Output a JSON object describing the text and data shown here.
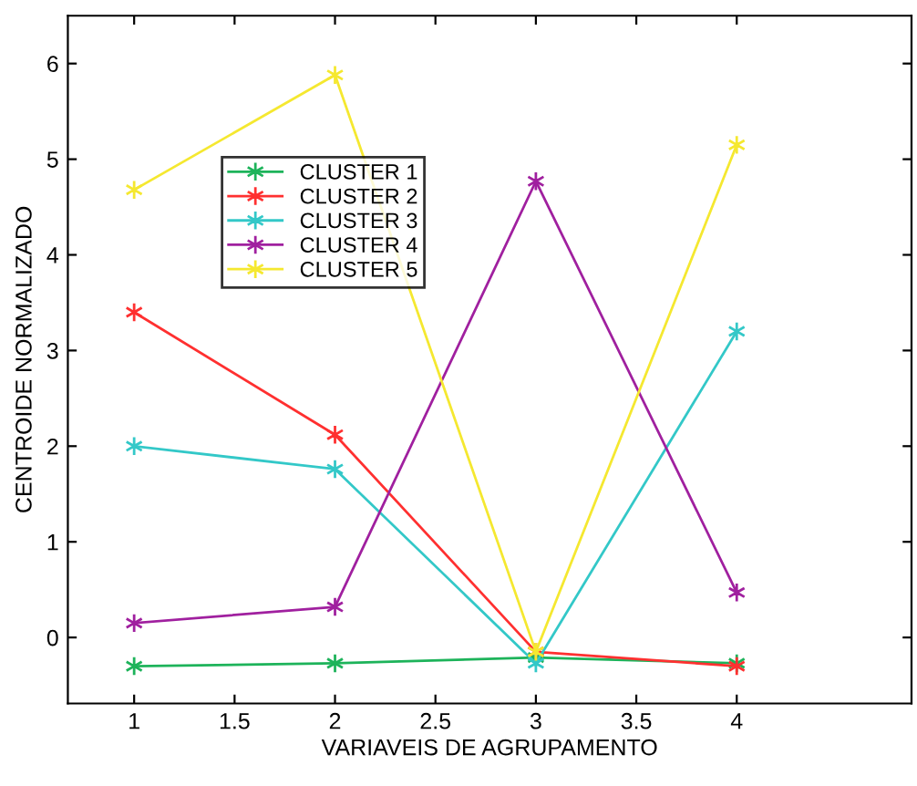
{
  "chart_data": {
    "type": "line",
    "xlabel": "VARIAVEIS DE AGRUPAMENTO",
    "ylabel": "CENTROIDE NORMALIZADO",
    "x": [
      1,
      2,
      3,
      4
    ],
    "series": [
      {
        "name": "CLUSTER 1",
        "color": "#1db35a",
        "values": [
          -0.3,
          -0.27,
          -0.21,
          -0.27
        ]
      },
      {
        "name": "CLUSTER 2",
        "color": "#ff3030",
        "values": [
          3.4,
          2.12,
          -0.15,
          -0.3
        ]
      },
      {
        "name": "CLUSTER 3",
        "color": "#33c8c8",
        "values": [
          2.0,
          1.76,
          -0.27,
          3.2
        ]
      },
      {
        "name": "CLUSTER 4",
        "color": "#a0209f",
        "values": [
          0.15,
          0.32,
          4.77,
          0.47
        ]
      },
      {
        "name": "CLUSTER 5",
        "color": "#f5e830",
        "values": [
          4.68,
          5.88,
          -0.15,
          5.15
        ]
      }
    ],
    "xlim": [
      0.67,
      4.87
    ],
    "xticks": [
      1,
      1.5,
      2,
      2.5,
      3,
      3.5,
      4
    ],
    "ylim": [
      -0.69,
      6.5
    ],
    "yticks": [
      0,
      1,
      2,
      3,
      4,
      5,
      6
    ],
    "grid": false,
    "legend": "left",
    "marker": "cross",
    "line_style": "solid"
  }
}
